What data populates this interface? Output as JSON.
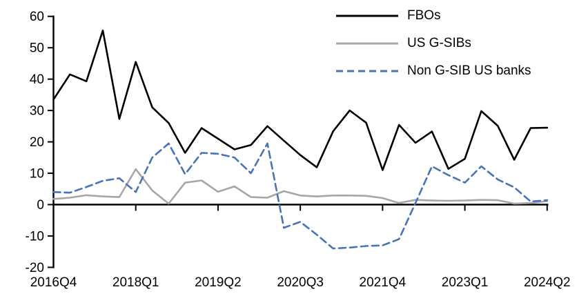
{
  "chart_data": {
    "type": "line",
    "title": "",
    "xlabel": "",
    "ylabel": "",
    "ylim": [
      -20,
      60
    ],
    "y_ticks": [
      60,
      50,
      40,
      30,
      20,
      10,
      0,
      -10,
      -20
    ],
    "x_tick_labels": [
      "2016Q4",
      "2018Q1",
      "2019Q2",
      "2020Q3",
      "2021Q4",
      "2023Q1",
      "2024Q2"
    ],
    "x_tick_indices": [
      0,
      5,
      10,
      15,
      20,
      25,
      30
    ],
    "grid": "off",
    "legend_position": "top-right",
    "categories": [
      "2016Q4",
      "2017Q1",
      "2017Q2",
      "2017Q3",
      "2017Q4",
      "2018Q1",
      "2018Q2",
      "2018Q3",
      "2018Q4",
      "2019Q1",
      "2019Q2",
      "2019Q3",
      "2019Q4",
      "2020Q1",
      "2020Q2",
      "2020Q3",
      "2020Q4",
      "2021Q1",
      "2021Q2",
      "2021Q3",
      "2021Q4",
      "2022Q1",
      "2022Q2",
      "2022Q3",
      "2022Q4",
      "2023Q1",
      "2023Q2",
      "2023Q3",
      "2023Q4",
      "2024Q1",
      "2024Q2"
    ],
    "series": [
      {
        "name": "FBOs",
        "color": "#000000",
        "dash": null,
        "values": [
          33.5,
          41.5,
          39.3,
          55.5,
          27.3,
          45.5,
          31.0,
          26.0,
          16.5,
          24.4,
          21.0,
          17.6,
          19.0,
          25.0,
          20.4,
          15.8,
          11.9,
          23.4,
          30.0,
          26.1,
          11.0,
          25.4,
          19.7,
          23.3,
          11.4,
          14.6,
          29.8,
          25.1,
          14.3,
          24.4,
          24.5
        ]
      },
      {
        "name": "US G-SIBs",
        "color": "#a6a6a6",
        "dash": null,
        "values": [
          1.8,
          2.2,
          3.0,
          2.6,
          2.4,
          11.3,
          4.5,
          0.3,
          7.0,
          7.7,
          4.1,
          5.8,
          2.4,
          2.2,
          4.3,
          2.9,
          2.6,
          2.9,
          2.9,
          2.8,
          2.1,
          0.5,
          1.5,
          1.3,
          1.2,
          1.3,
          1.5,
          1.4,
          0.3,
          0.5,
          1.1
        ]
      },
      {
        "name": "Non G-SIB US banks",
        "color": "#4472c4",
        "dash": [
          10,
          6
        ],
        "values": [
          4.0,
          3.8,
          5.6,
          7.6,
          8.4,
          4.0,
          15.0,
          19.5,
          9.7,
          16.5,
          16.2,
          15.0,
          10.0,
          19.5,
          -7.4,
          -5.5,
          -9.6,
          -14.0,
          -13.7,
          -13.2,
          -13.0,
          -11.0,
          0.5,
          12.2,
          9.4,
          7.0,
          12.2,
          8.0,
          5.5,
          1.0,
          1.4
        ]
      }
    ]
  }
}
